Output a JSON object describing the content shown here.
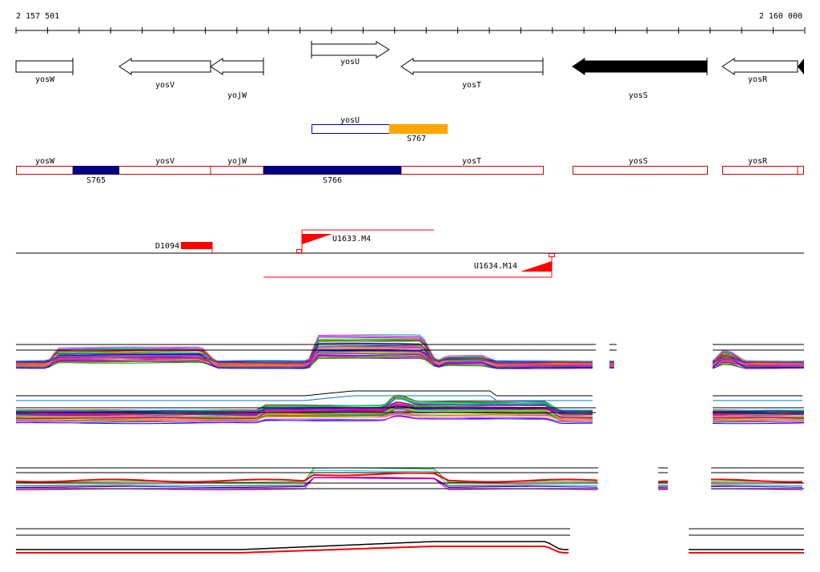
{
  "ruler": {
    "start_label": "2 157 501",
    "end_label": "2 160 000"
  },
  "genes": [
    {
      "label": "yosW",
      "strand": "+",
      "filled": false
    },
    {
      "label": "yosV",
      "strand": "-",
      "filled": false
    },
    {
      "label": "yojW",
      "strand": "-",
      "filled": false
    },
    {
      "label": "yosU",
      "strand": "+",
      "filled": false
    },
    {
      "label": "yosT",
      "strand": "-",
      "filled": false
    },
    {
      "label": "yosS",
      "strand": "-",
      "filled": true
    },
    {
      "label": "yosR",
      "strand": "-",
      "filled": false
    }
  ],
  "segment_track": {
    "gene_label": "yosU",
    "segment_label": "S767",
    "colors": {
      "gene_outline": "#0000cc",
      "segment": "#ffa500"
    }
  },
  "annotation_track": {
    "gene_labels": [
      "yosW",
      "yosV",
      "yojW",
      "yosT",
      "yosS",
      "yosR"
    ],
    "segments": [
      {
        "label": "S765",
        "color": "#000080"
      },
      {
        "label": "S766",
        "color": "#000080"
      }
    ],
    "colors": {
      "gene_outline": "#cc0000"
    }
  },
  "feature_track": {
    "features": [
      {
        "label": "D1094",
        "color": "#ff0000"
      },
      {
        "label": "U1633.M4",
        "color": "#ff0000"
      },
      {
        "label": "U1634.M14",
        "color": "#ff0000"
      }
    ]
  },
  "expression_colors": [
    "#ff0000",
    "#00aa00",
    "#0000ff",
    "#ff00ff",
    "#00cccc",
    "#ffaa00",
    "#8800cc",
    "#00ff00",
    "#aa5500",
    "#ff66aa",
    "#4444ff",
    "#669900"
  ]
}
